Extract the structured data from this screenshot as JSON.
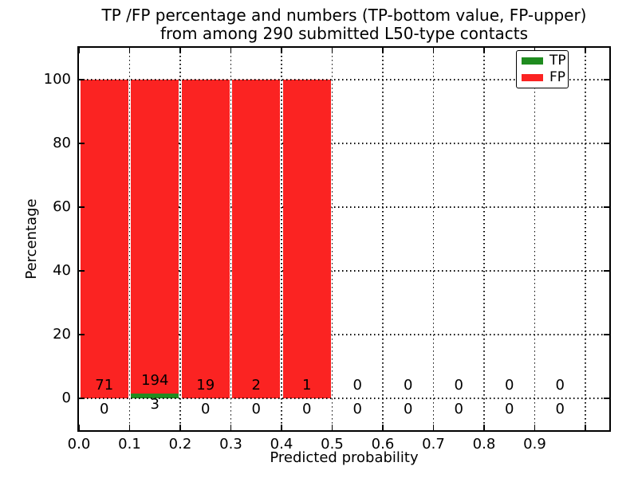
{
  "title": {
    "line1": "TP /FP percentage and numbers (TP-bottom value, FP-upper)",
    "line2": "from among 290 submitted L50-type contacts"
  },
  "axes": {
    "xlabel": "Predicted probability",
    "ylabel": "Percentage",
    "xtick_labels": [
      "0.0",
      "0.1",
      "0.2",
      "0.3",
      "0.4",
      "0.5",
      "0.6",
      "0.7",
      "0.8",
      "0.9"
    ],
    "ytick_labels": [
      "0",
      "20",
      "40",
      "60",
      "80",
      "100"
    ],
    "ytick_values": [
      0,
      20,
      40,
      60,
      80,
      100
    ],
    "xlim": [
      0,
      1.047
    ],
    "ylim": [
      -10,
      110
    ],
    "grid": "dotted"
  },
  "legend": {
    "position": "upper right",
    "items": [
      {
        "label": "TP",
        "color": "#1f8b1f"
      },
      {
        "label": "FP",
        "color": "#fb2322"
      }
    ]
  },
  "chart_data": {
    "type": "bar",
    "stacked": true,
    "title": "TP /FP percentage and numbers (TP-bottom value, FP-upper) from among 290 submitted L50-type contacts",
    "xlabel": "Predicted probability",
    "ylabel": "Percentage",
    "total_contacts": 290,
    "bin_width": 0.1,
    "bin_starts": [
      0.0,
      0.1,
      0.2,
      0.3,
      0.4,
      0.5,
      0.6,
      0.7,
      0.8,
      0.9
    ],
    "series": [
      {
        "name": "TP",
        "color": "#1f8b1f",
        "counts": [
          0,
          3,
          0,
          0,
          0,
          0,
          0,
          0,
          0,
          0
        ],
        "percent": [
          0,
          1.52,
          0,
          0,
          0,
          0,
          0,
          0,
          0,
          0
        ]
      },
      {
        "name": "FP",
        "color": "#fb2322",
        "counts": [
          71,
          194,
          19,
          2,
          1,
          0,
          0,
          0,
          0,
          0
        ],
        "percent": [
          100,
          98.48,
          100,
          100,
          100,
          0,
          0,
          0,
          0,
          0
        ]
      }
    ],
    "ylim": [
      -10,
      110
    ],
    "xlim": [
      0,
      1.047
    ],
    "grid": true,
    "legend_position": "upper right"
  }
}
